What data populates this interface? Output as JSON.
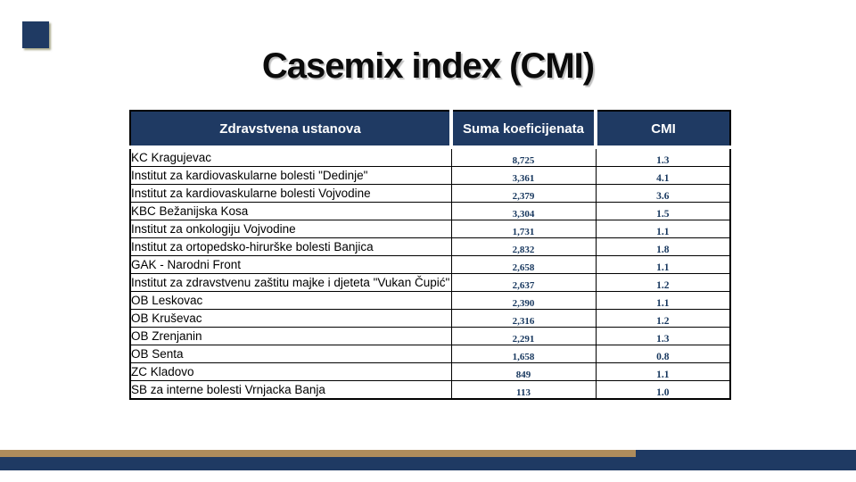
{
  "slide": {
    "title": "Casemix index (CMI)"
  },
  "table": {
    "columns": [
      {
        "label": "Zdravstvena ustanova"
      },
      {
        "label": "Suma koeficijenata"
      },
      {
        "label": "CMI"
      }
    ],
    "rows": [
      {
        "ustanova": "KC Kragujevac",
        "suma": "8,725",
        "cmi": "1.3"
      },
      {
        "ustanova": "Institut za kardiovaskularne bolesti \"Dedinje\"",
        "suma": "3,361",
        "cmi": "4.1"
      },
      {
        "ustanova": "Institut za kardiovaskularne bolesti Vojvodine",
        "suma": "2,379",
        "cmi": "3.6"
      },
      {
        "ustanova": "KBC Bežanijska Kosa",
        "suma": "3,304",
        "cmi": "1.5"
      },
      {
        "ustanova": "Institut za onkologiju Vojvodine",
        "suma": "1,731",
        "cmi": "1.1"
      },
      {
        "ustanova": "Institut za ortopedsko-hirurške bolesti Banjica",
        "suma": "2,832",
        "cmi": "1.8"
      },
      {
        "ustanova": "GAK - Narodni Front",
        "suma": "2,658",
        "cmi": "1.1"
      },
      {
        "ustanova": "Institut za zdravstvenu zaštitu majke i djeteta \"Vukan Čupić\"",
        "suma": "2,637",
        "cmi": "1.2"
      },
      {
        "ustanova": "OB Leskovac",
        "suma": "2,390",
        "cmi": "1.1"
      },
      {
        "ustanova": "OB Kruševac",
        "suma": "2,316",
        "cmi": "1.2"
      },
      {
        "ustanova": "OB Zrenjanin",
        "suma": "2,291",
        "cmi": "1.3"
      },
      {
        "ustanova": "OB Senta",
        "suma": "1,658",
        "cmi": "0.8"
      },
      {
        "ustanova": "ZC Kladovo",
        "suma": "849",
        "cmi": "1.1"
      },
      {
        "ustanova": "SB za interne bolesti Vrnjacka Banja",
        "suma": "113",
        "cmi": "1.0"
      }
    ]
  },
  "colors": {
    "navy": "#1F3A63",
    "tan": "#AE8C5C",
    "number_text": "#17375E"
  }
}
